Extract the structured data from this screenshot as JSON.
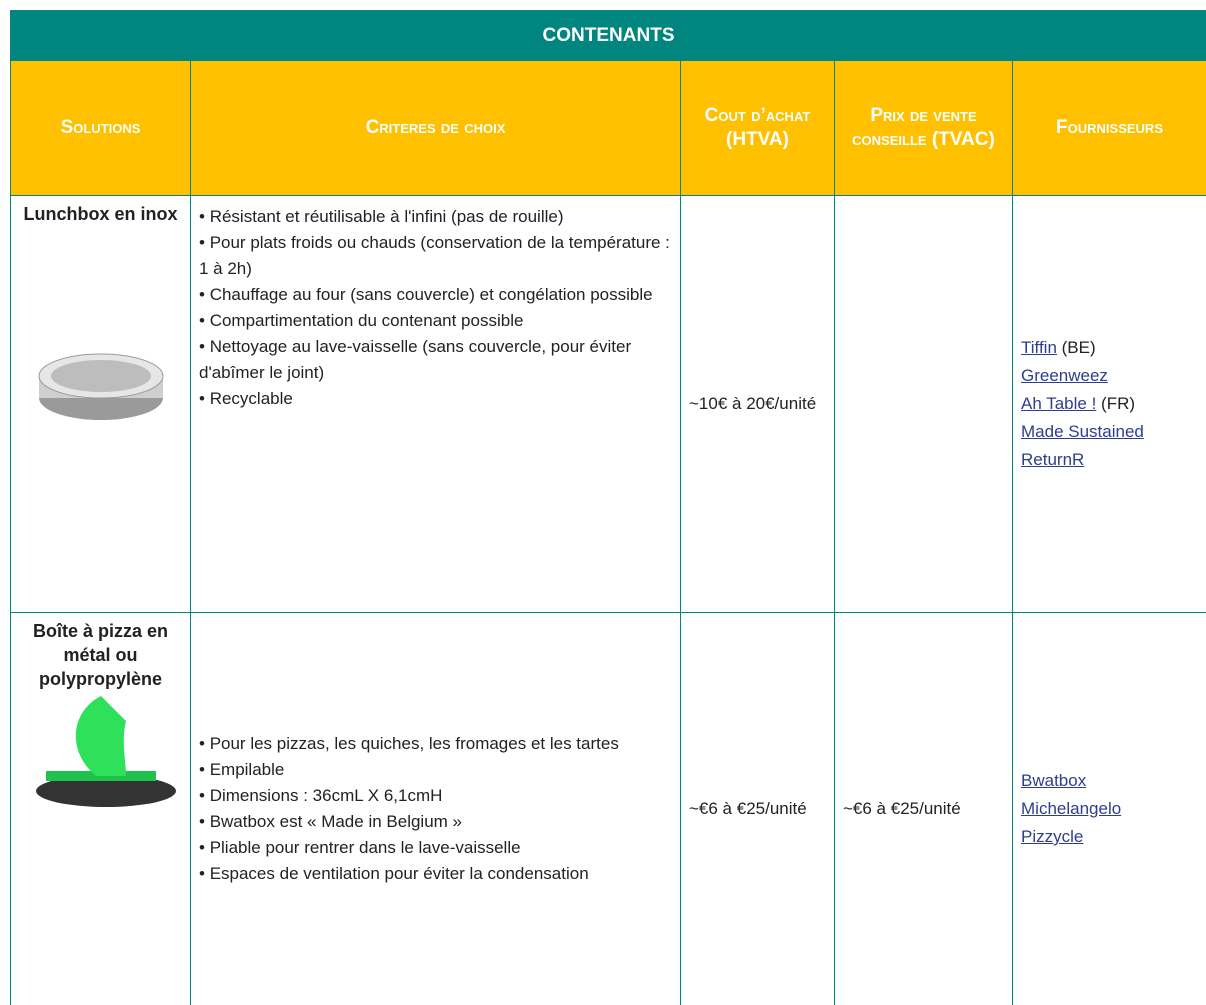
{
  "title": "CONTENANTS",
  "header": [
    "Solutions",
    "Criteres de choix",
    "Cout d’achat (HTVA)",
    "Prix de vente conseille (TVAC)",
    "Fournisseurs"
  ],
  "rows": [
    {
      "solution": "Lunchbox en inox",
      "criteria": [
        "Résistant et réutilisable à l'infini (pas de rouille)",
        "Pour plats froids ou chauds (conservation de la température : 1 à 2h)",
        "Chauffage au four (sans couvercle) et congélation possible",
        "Compartimentation du contenant possible",
        "Nettoyage au lave-vaisselle (sans couvercle, pour éviter d'abîmer le joint)",
        "Recyclable"
      ],
      "cost": "~10€ à 20€/unité",
      "suppliers": [
        {
          "name": "Tiffin",
          "note": "(BE)"
        },
        {
          "name": "Greenweez"
        },
        {
          "name": "Ah Table !",
          "note": "(FR)"
        },
        {
          "name": "Made Sustained"
        },
        {
          "name": "ReturnR"
        }
      ]
    },
    {
      "solution": "Boîte à pizza en métal ou polypropylène",
      "criteria": [
        "Pour les pizzas, les quiches, les fromages et les tartes",
        "Empilable",
        "Dimensions : 36cmL X 6,1cmH",
        "Bwatbox est « Made in Belgium »",
        "Pliable pour rentrer dans le lave-vaisselle",
        "Espaces de ventilation pour éviter la condensation"
      ],
      "cost": "~€6 à €25/unité",
      "price": "~€6 à €25/unité",
      "suppliers": [
        {
          "name": "Bwatbox"
        },
        {
          "name": "Michelangelo"
        },
        {
          "name": "Pizzycle"
        }
      ]
    }
  ]
}
